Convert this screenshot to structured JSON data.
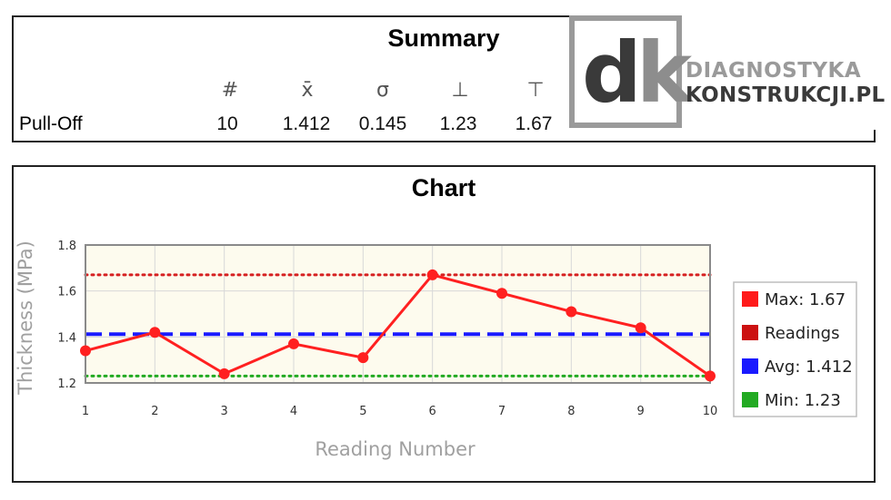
{
  "summary": {
    "title": "Summary",
    "row_label": "Pull-Off",
    "columns": [
      {
        "symbol": "#",
        "value": "10"
      },
      {
        "symbol": "x̄",
        "value": "1.412"
      },
      {
        "symbol": "σ",
        "value": "0.145"
      },
      {
        "symbol": "⊥",
        "value": "1.23"
      },
      {
        "symbol": "⊤",
        "value": "1.67"
      }
    ]
  },
  "logo": {
    "mark_d": "d",
    "mark_k": "k",
    "line1": "DIAGNOSTYKA",
    "line2": "KONSTRUKCJI.PL"
  },
  "chart_title": "Chart",
  "chart_data": {
    "type": "line",
    "x": [
      1,
      2,
      3,
      4,
      5,
      6,
      7,
      8,
      9,
      10
    ],
    "series": [
      {
        "name": "Readings",
        "values": [
          1.34,
          1.42,
          1.24,
          1.37,
          1.31,
          1.67,
          1.59,
          1.51,
          1.44,
          1.23
        ],
        "color": "#ff2020"
      }
    ],
    "reference_lines": [
      {
        "name": "Max",
        "value": 1.67,
        "label": "Max: 1.67",
        "color": "#d62020",
        "style": "dotted"
      },
      {
        "name": "Avg",
        "value": 1.412,
        "label": "Avg: 1.412",
        "color": "#1a1aff",
        "style": "dashed"
      },
      {
        "name": "Min",
        "value": 1.23,
        "label": "Min: 1.23",
        "color": "#22aa22",
        "style": "dotted"
      }
    ],
    "legend": [
      {
        "label": "Max: 1.67",
        "color": "#ff1a1a"
      },
      {
        "label": "Readings",
        "color": "#cc1111"
      },
      {
        "label": "Avg: 1.412",
        "color": "#1a1aff"
      },
      {
        "label": "Min: 1.23",
        "color": "#22aa22"
      }
    ],
    "xlabel": "Reading Number",
    "ylabel": "Thickness (MPa)",
    "xlim": [
      1,
      10
    ],
    "ylim": [
      1.2,
      1.8
    ],
    "yticks": [
      1.2,
      1.4,
      1.6,
      1.8
    ],
    "xticks": [
      1,
      2,
      3,
      4,
      5,
      6,
      7,
      8,
      9,
      10
    ],
    "grid": true,
    "legend_position": "right",
    "background": "#fdfbee"
  }
}
